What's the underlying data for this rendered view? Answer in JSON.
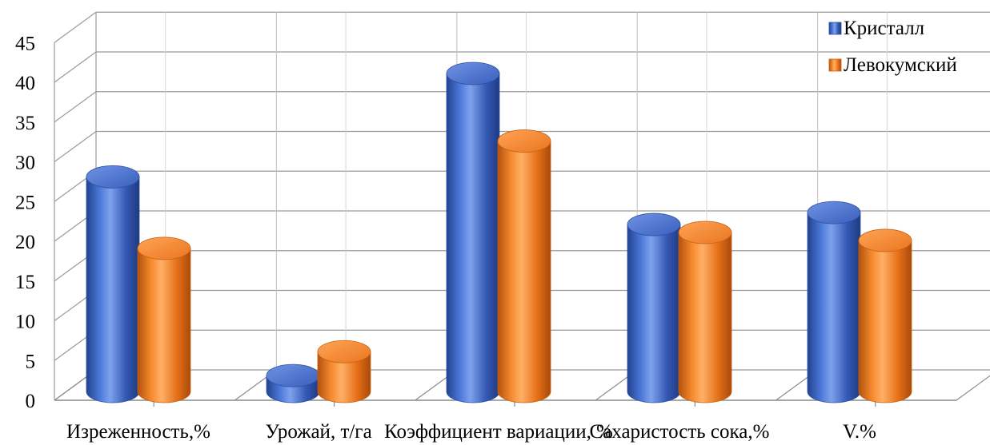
{
  "chart_data": {
    "type": "bar",
    "categories": [
      "Изреженность,%",
      "Урожай, т/га",
      "Коэффициент вариации, %",
      "Сахаристость  сока,%",
      "V.%"
    ],
    "series": [
      {
        "name": "Кристалл",
        "values": [
          27,
          2,
          40,
          21,
          22.5
        ],
        "color": "#3a63c4"
      },
      {
        "name": "Левокумский",
        "values": [
          18,
          5,
          31.5,
          20,
          19
        ],
        "color": "#f07f26"
      }
    ],
    "ylim": [
      0,
      45
    ],
    "yticks": [
      0,
      5,
      10,
      15,
      20,
      25,
      30,
      35,
      40,
      45
    ],
    "grid": true,
    "legend_position": "top-right",
    "style": "3d-cylinder"
  }
}
